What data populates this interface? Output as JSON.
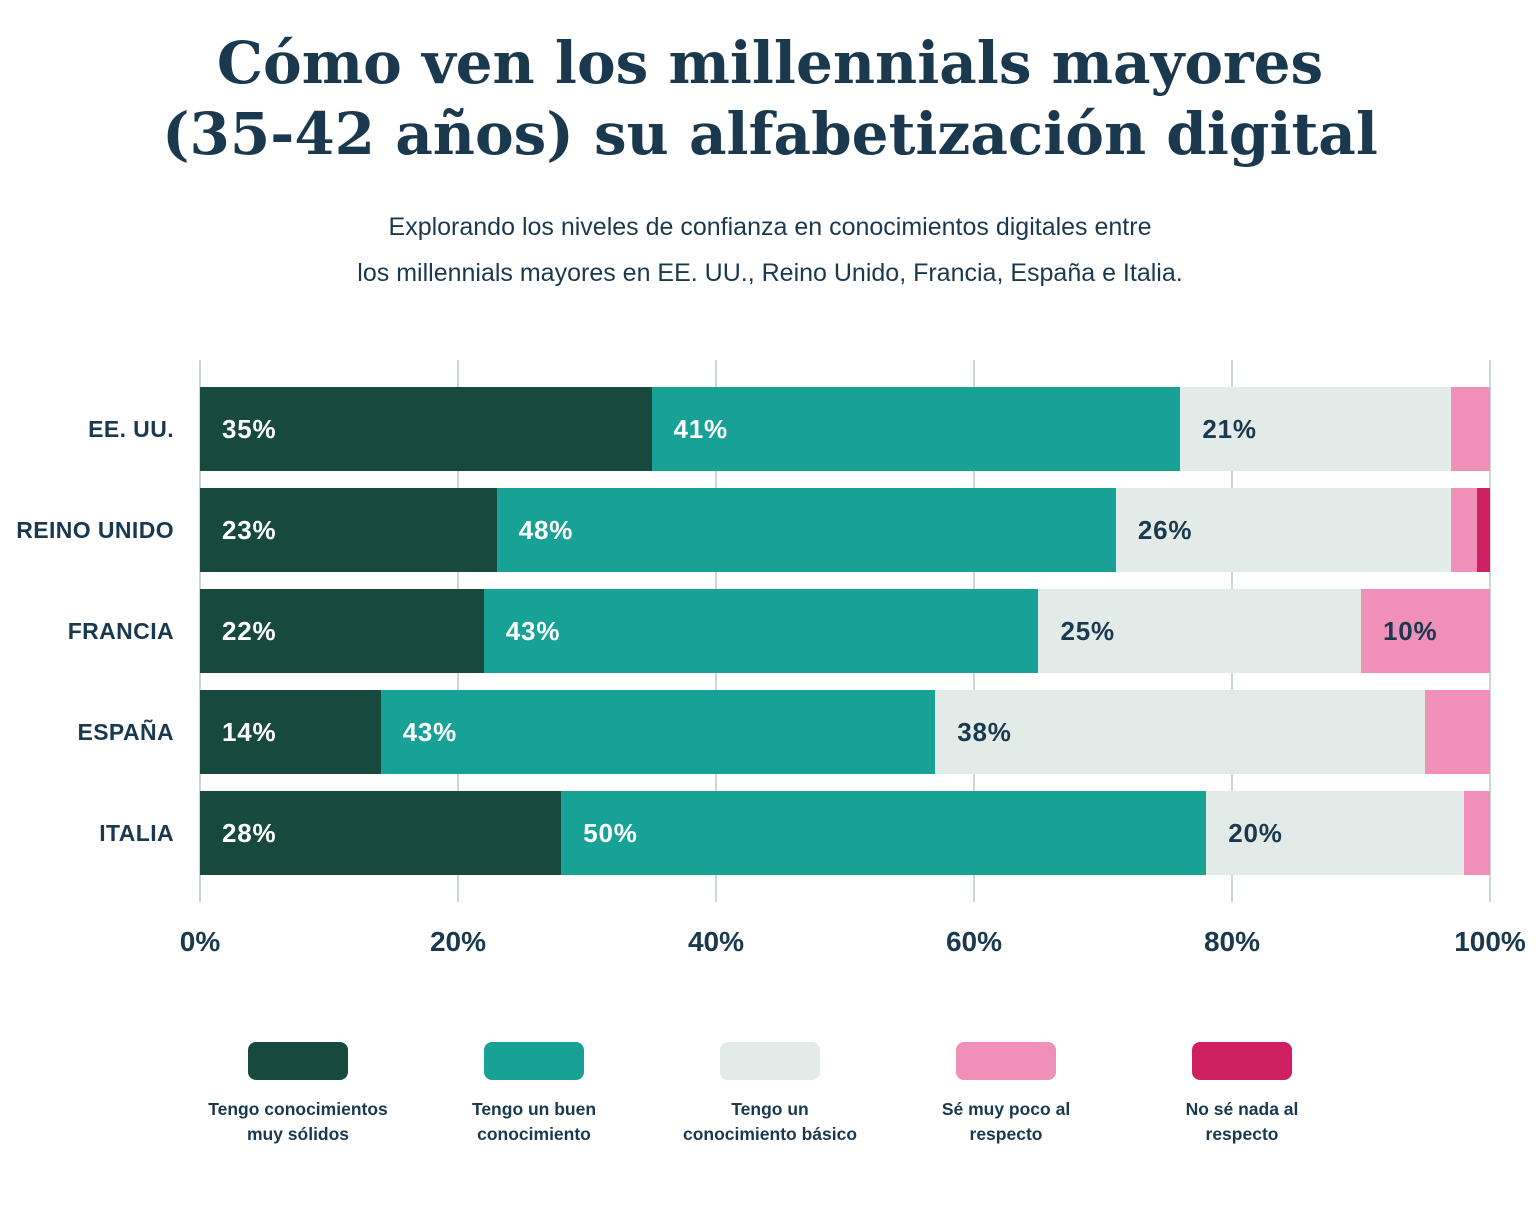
{
  "title": {
    "line1": "Cómo ven los millennials mayores",
    "line2": "(35-42 años) su alfabetización digital"
  },
  "subtitle": {
    "line1": "Explorando los niveles de confianza en conocimientos digitales entre",
    "line2": "los millennials mayores en EE. UU., Reino Unido, Francia, España e Italia."
  },
  "colors": {
    "text": "#1b394e",
    "gridline": "#cdd6d4",
    "background": "#ffffff"
  },
  "chart_data": {
    "type": "bar",
    "orientation": "horizontal",
    "stacked": true,
    "grid": true,
    "legend_position": "bottom",
    "xlim": [
      0,
      100
    ],
    "x_ticks": [
      "0%",
      "20%",
      "40%",
      "60%",
      "80%",
      "100%"
    ],
    "tick_values": [
      0,
      20,
      40,
      60,
      80,
      100
    ],
    "categories": [
      "EE. UU.",
      "REINO UNIDO",
      "FRANCIA",
      "ESPAÑA",
      "ITALIA"
    ],
    "series": [
      {
        "name": "Tengo conocimientos\nmuy sólidos",
        "color": "#17493e",
        "label_color": "#ffffff",
        "values": [
          35,
          23,
          22,
          14,
          28
        ]
      },
      {
        "name": "Tengo un buen\nconocimiento",
        "color": "#18a295",
        "label_color": "#ffffff",
        "values": [
          41,
          48,
          43,
          43,
          50
        ]
      },
      {
        "name": "Tengo un\nconocimiento básico",
        "color": "#e2ebe8",
        "label_color": "#1b394e",
        "values": [
          21,
          26,
          25,
          38,
          20
        ]
      },
      {
        "name": "Sé muy poco al\nrespecto",
        "color": "#f08fba",
        "label_color": "#1b394e",
        "values": [
          3,
          2,
          10,
          5,
          2
        ]
      },
      {
        "name": "No sé nada al\nrespecto",
        "color": "#ce2062",
        "label_color": "#ffffff",
        "values": [
          0,
          1,
          0,
          0,
          0
        ]
      }
    ],
    "min_value_for_label": 10
  }
}
